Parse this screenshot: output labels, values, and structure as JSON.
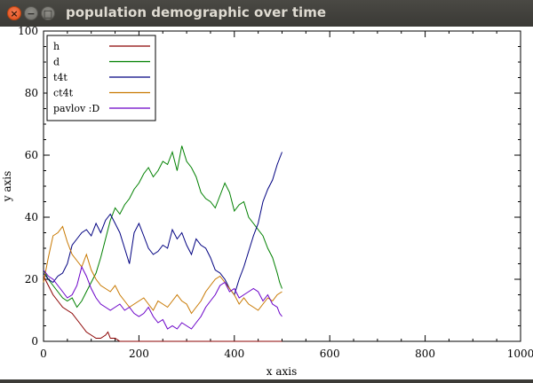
{
  "window": {
    "title": "population demographic over time",
    "close_glyph": "×",
    "minimize_glyph": "−",
    "maximize_glyph": "□"
  },
  "chart_data": {
    "type": "line",
    "xlabel": "x axis",
    "ylabel": "y axis",
    "xlim": [
      0,
      1000
    ],
    "ylim": [
      0,
      100
    ],
    "xticks": [
      0,
      200,
      400,
      600,
      800,
      1000
    ],
    "yticks": [
      0,
      20,
      40,
      60,
      80,
      100
    ],
    "x_tick_labels": [
      "0",
      "200",
      "400",
      "600",
      "800",
      "1000"
    ],
    "y_tick_labels": [
      "0",
      "20",
      "40",
      "60",
      "80",
      "100"
    ],
    "grid": false,
    "legend_position": "top-left",
    "series": [
      {
        "name": "h",
        "color": "#8b0000",
        "points": [
          [
            0,
            21
          ],
          [
            10,
            18
          ],
          [
            20,
            15
          ],
          [
            30,
            13
          ],
          [
            40,
            11
          ],
          [
            50,
            10
          ],
          [
            60,
            9
          ],
          [
            70,
            7
          ],
          [
            80,
            5
          ],
          [
            90,
            3
          ],
          [
            100,
            2
          ],
          [
            110,
            1
          ],
          [
            120,
            1
          ],
          [
            130,
            2
          ],
          [
            135,
            3
          ],
          [
            140,
            1
          ],
          [
            150,
            1
          ],
          [
            160,
            0
          ],
          [
            200,
            0
          ],
          [
            300,
            0
          ],
          [
            400,
            0
          ],
          [
            500,
            0
          ]
        ]
      },
      {
        "name": "d",
        "color": "#008000",
        "points": [
          [
            0,
            23
          ],
          [
            10,
            20
          ],
          [
            20,
            18
          ],
          [
            30,
            16
          ],
          [
            40,
            14
          ],
          [
            50,
            13
          ],
          [
            60,
            14
          ],
          [
            70,
            11
          ],
          [
            80,
            13
          ],
          [
            90,
            16
          ],
          [
            100,
            19
          ],
          [
            110,
            22
          ],
          [
            120,
            27
          ],
          [
            130,
            33
          ],
          [
            140,
            39
          ],
          [
            150,
            43
          ],
          [
            160,
            41
          ],
          [
            170,
            44
          ],
          [
            180,
            46
          ],
          [
            190,
            49
          ],
          [
            200,
            51
          ],
          [
            210,
            54
          ],
          [
            220,
            56
          ],
          [
            230,
            53
          ],
          [
            240,
            55
          ],
          [
            250,
            58
          ],
          [
            260,
            57
          ],
          [
            270,
            61
          ],
          [
            280,
            55
          ],
          [
            290,
            63
          ],
          [
            300,
            58
          ],
          [
            310,
            56
          ],
          [
            320,
            53
          ],
          [
            330,
            48
          ],
          [
            340,
            46
          ],
          [
            350,
            45
          ],
          [
            360,
            43
          ],
          [
            370,
            47
          ],
          [
            380,
            51
          ],
          [
            390,
            48
          ],
          [
            400,
            42
          ],
          [
            410,
            44
          ],
          [
            420,
            45
          ],
          [
            430,
            40
          ],
          [
            440,
            38
          ],
          [
            450,
            36
          ],
          [
            460,
            34
          ],
          [
            470,
            30
          ],
          [
            480,
            27
          ],
          [
            490,
            22
          ],
          [
            495,
            19
          ],
          [
            500,
            17
          ]
        ]
      },
      {
        "name": "t4t",
        "color": "#000080",
        "points": [
          [
            0,
            22
          ],
          [
            10,
            20
          ],
          [
            20,
            19
          ],
          [
            30,
            21
          ],
          [
            40,
            22
          ],
          [
            50,
            25
          ],
          [
            60,
            31
          ],
          [
            70,
            33
          ],
          [
            80,
            35
          ],
          [
            90,
            36
          ],
          [
            100,
            34
          ],
          [
            110,
            38
          ],
          [
            120,
            35
          ],
          [
            130,
            39
          ],
          [
            140,
            41
          ],
          [
            150,
            38
          ],
          [
            160,
            35
          ],
          [
            170,
            30
          ],
          [
            180,
            25
          ],
          [
            190,
            35
          ],
          [
            200,
            38
          ],
          [
            210,
            34
          ],
          [
            220,
            30
          ],
          [
            230,
            28
          ],
          [
            240,
            29
          ],
          [
            250,
            31
          ],
          [
            260,
            30
          ],
          [
            270,
            36
          ],
          [
            280,
            33
          ],
          [
            290,
            35
          ],
          [
            300,
            31
          ],
          [
            310,
            28
          ],
          [
            320,
            33
          ],
          [
            330,
            31
          ],
          [
            340,
            30
          ],
          [
            350,
            27
          ],
          [
            360,
            23
          ],
          [
            370,
            22
          ],
          [
            380,
            20
          ],
          [
            390,
            17
          ],
          [
            400,
            15
          ],
          [
            410,
            20
          ],
          [
            420,
            24
          ],
          [
            430,
            29
          ],
          [
            440,
            34
          ],
          [
            450,
            38
          ],
          [
            460,
            45
          ],
          [
            470,
            49
          ],
          [
            480,
            52
          ],
          [
            490,
            57
          ],
          [
            495,
            59
          ],
          [
            500,
            61
          ]
        ]
      },
      {
        "name": "ct4t",
        "color": "#c87800",
        "points": [
          [
            0,
            19
          ],
          [
            10,
            27
          ],
          [
            20,
            34
          ],
          [
            30,
            35
          ],
          [
            40,
            37
          ],
          [
            50,
            32
          ],
          [
            60,
            28
          ],
          [
            70,
            26
          ],
          [
            80,
            24
          ],
          [
            90,
            28
          ],
          [
            100,
            23
          ],
          [
            110,
            20
          ],
          [
            120,
            18
          ],
          [
            130,
            17
          ],
          [
            140,
            16
          ],
          [
            150,
            18
          ],
          [
            160,
            15
          ],
          [
            170,
            13
          ],
          [
            180,
            11
          ],
          [
            190,
            12
          ],
          [
            200,
            13
          ],
          [
            210,
            14
          ],
          [
            220,
            12
          ],
          [
            230,
            10
          ],
          [
            240,
            13
          ],
          [
            250,
            12
          ],
          [
            260,
            11
          ],
          [
            270,
            13
          ],
          [
            280,
            15
          ],
          [
            290,
            13
          ],
          [
            300,
            12
          ],
          [
            310,
            9
          ],
          [
            320,
            11
          ],
          [
            330,
            13
          ],
          [
            340,
            16
          ],
          [
            350,
            18
          ],
          [
            360,
            20
          ],
          [
            370,
            21
          ],
          [
            380,
            19
          ],
          [
            390,
            17
          ],
          [
            400,
            15
          ],
          [
            410,
            12
          ],
          [
            420,
            14
          ],
          [
            430,
            12
          ],
          [
            440,
            11
          ],
          [
            450,
            10
          ],
          [
            460,
            12
          ],
          [
            470,
            14
          ],
          [
            480,
            13
          ],
          [
            490,
            15
          ],
          [
            500,
            16
          ]
        ]
      },
      {
        "name": "pavlov :D",
        "color": "#6a00c8",
        "points": [
          [
            0,
            23
          ],
          [
            10,
            21
          ],
          [
            20,
            20
          ],
          [
            30,
            18
          ],
          [
            40,
            16
          ],
          [
            50,
            14
          ],
          [
            60,
            15
          ],
          [
            70,
            18
          ],
          [
            80,
            24
          ],
          [
            90,
            21
          ],
          [
            100,
            17
          ],
          [
            110,
            14
          ],
          [
            120,
            12
          ],
          [
            130,
            11
          ],
          [
            140,
            10
          ],
          [
            150,
            11
          ],
          [
            160,
            12
          ],
          [
            170,
            10
          ],
          [
            180,
            11
          ],
          [
            190,
            9
          ],
          [
            200,
            8
          ],
          [
            210,
            9
          ],
          [
            220,
            11
          ],
          [
            230,
            8
          ],
          [
            240,
            6
          ],
          [
            250,
            7
          ],
          [
            260,
            4
          ],
          [
            270,
            5
          ],
          [
            280,
            4
          ],
          [
            290,
            6
          ],
          [
            300,
            5
          ],
          [
            310,
            4
          ],
          [
            320,
            6
          ],
          [
            330,
            8
          ],
          [
            340,
            11
          ],
          [
            350,
            13
          ],
          [
            360,
            15
          ],
          [
            370,
            18
          ],
          [
            380,
            19
          ],
          [
            390,
            16
          ],
          [
            400,
            17
          ],
          [
            410,
            14
          ],
          [
            420,
            15
          ],
          [
            430,
            16
          ],
          [
            440,
            17
          ],
          [
            450,
            16
          ],
          [
            460,
            13
          ],
          [
            470,
            15
          ],
          [
            480,
            12
          ],
          [
            490,
            11
          ],
          [
            495,
            9
          ],
          [
            500,
            8
          ]
        ]
      }
    ]
  }
}
